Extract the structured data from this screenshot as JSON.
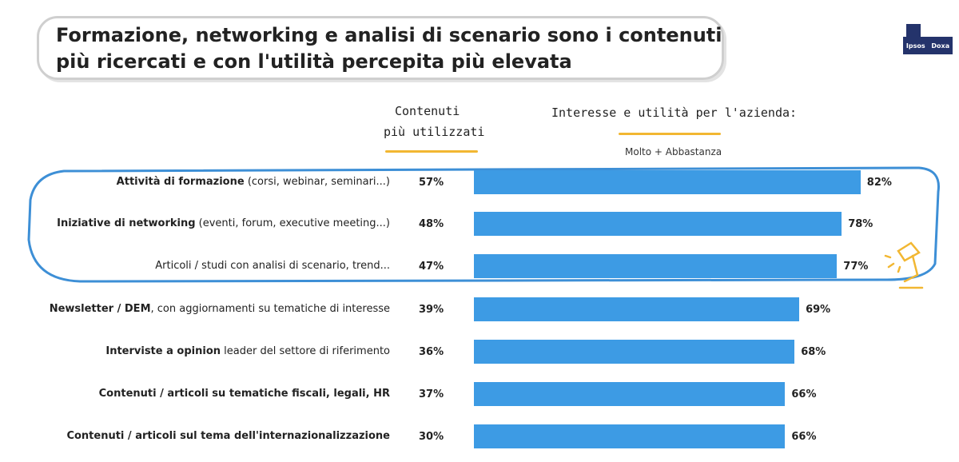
{
  "title": {
    "line1": "Formazione, networking e analisi di scenario sono i contenuti",
    "line2": "più ricercati e con l'utilità percepita più elevata"
  },
  "logo": {
    "left": "Ipsos",
    "right": "Doxa"
  },
  "headers": {
    "used_line1": "Contenuti",
    "used_line2": "più utilizzati",
    "interest": "Interesse e utilità per l'azienda:",
    "subtitle": "Molto + Abbastanza"
  },
  "colors": {
    "bar": "#3d9be4",
    "highlight": "#3d8fd6",
    "accent": "#f2b732"
  },
  "chart_data": {
    "type": "bar",
    "orientation": "horizontal",
    "title": "Interesse e utilità per l'azienda: Molto + Abbastanza",
    "categories": [
      {
        "bold": "Attività di formazione",
        "rest": " (corsi, webinar, seminari...)"
      },
      {
        "bold": "Iniziative di networking",
        "rest": " (eventi, forum, executive meeting...)"
      },
      {
        "bold": "",
        "rest": "Articoli / studi con analisi di scenario, trend..."
      },
      {
        "bold": "Newsletter / DEM",
        "rest": ", con aggiornamenti su tematiche di interesse"
      },
      {
        "bold": "Interviste a opinion",
        "rest": " leader del settore di riferimento"
      },
      {
        "bold": "Contenuti / articoli su tematiche fiscali, legali, HR",
        "rest": ""
      },
      {
        "bold": "Contenuti / articoli sul tema dell'internazionalizzazione",
        "rest": ""
      }
    ],
    "series": [
      {
        "name": "Contenuti più utilizzati",
        "values": [
          57,
          48,
          47,
          39,
          36,
          37,
          30
        ],
        "labels": [
          "57%",
          "48%",
          "47%",
          "39%",
          "36%",
          "37%",
          "30%"
        ]
      },
      {
        "name": "Interesse e utilità (Molto + Abbastanza)",
        "values": [
          82,
          78,
          77,
          69,
          68,
          66,
          66
        ],
        "labels": [
          "82%",
          "78%",
          "77%",
          "69%",
          "68%",
          "66%",
          "66%"
        ]
      }
    ],
    "highlighted_rows": [
      0,
      1,
      2
    ],
    "xlim": [
      0,
      100
    ]
  }
}
